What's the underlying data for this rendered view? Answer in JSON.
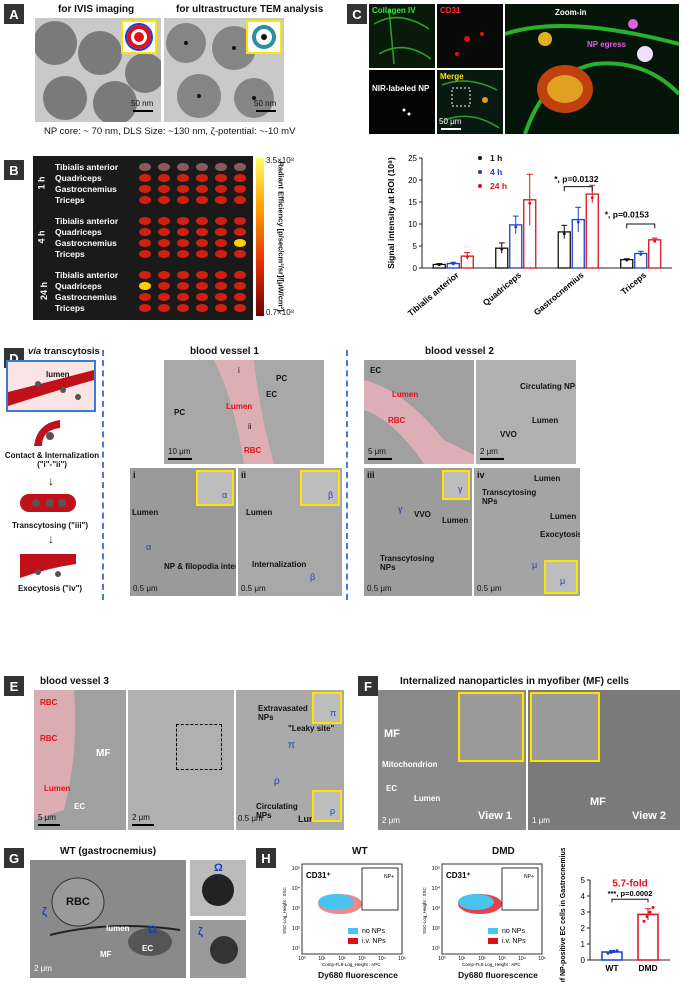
{
  "panels": {
    "A": {
      "label": "A",
      "title_left": "for IVIS imaging",
      "title_right": "for ultrastructure TEM analysis",
      "scale_left": "50 nm",
      "scale_right": "50 nm",
      "caption": "NP core: ~ 70 nm, DLS Size: ~130 nm, ζ-potential: ~-10 mV"
    },
    "B": {
      "label": "B",
      "groups": [
        {
          "time": "1 h",
          "rows": [
            "Tibialis anterior",
            "Quadriceps",
            "Gastrocnemius",
            "Triceps"
          ]
        },
        {
          "time": "4 h",
          "rows": [
            "Tibialis anterior",
            "Quadriceps",
            "Gastrocnemius",
            "Triceps"
          ]
        },
        {
          "time": "24 h",
          "rows": [
            "Tibialis anterior",
            "Quadriceps",
            "Gastrocnemius",
            "Triceps"
          ]
        }
      ],
      "colorbar_max": "3.5×10⁸",
      "colorbar_min": "0.7×10⁸",
      "colorbar_label": "Radiant Efficiency [p/sec/cm²/sr]/[μW/cm²]"
    },
    "C": {
      "label": "C",
      "img_labels": {
        "collagen": "Collagen IV",
        "cd31": "CD31",
        "zoom": "Zoom-in",
        "nir": "NIR-labeled NP",
        "merge": "Merge",
        "egress": "NP egress",
        "scale": "50 μm"
      }
    },
    "D": {
      "label": "D",
      "schematic_title_a": "via",
      "schematic_title_b": " transcytosis",
      "lumen": "lumen",
      "step1": "Contact & Internalization (\"i\"-\"ii\")",
      "step2": "Transcytosing (\"iii\")",
      "step3": "Exocytosis (\"iv\")",
      "bv1_title": "blood vessel 1",
      "bv2_title": "blood vessel 2",
      "bv1_labels": {
        "pc1": "PC",
        "pc2": "PC",
        "ec": "EC",
        "lumen": "Lumen",
        "rbc": "RBC",
        "i": "i",
        "ii": "ii",
        "scale": "10 μm"
      },
      "bv2_labels": {
        "ec": "EC",
        "lumen": "Lumen",
        "rbc": "RBC",
        "scale": "5 μm",
        "circ": "Circulating NPs",
        "lumen2": "Lumen",
        "vvo": "VVO",
        "scale2": "2 μm"
      },
      "sub": {
        "i": {
          "num": "i",
          "lumen": "Lumen",
          "text": "NP & filopodia interaction",
          "greek": "α",
          "scale": "0.5 μm"
        },
        "ii": {
          "num": "ii",
          "lumen": "Lumen",
          "text": "Internalization",
          "greek": "β",
          "scale": "0.5 μm"
        },
        "iii": {
          "num": "iii",
          "vvo": "VVO",
          "lumen": "Lumen",
          "text": "Transcytosing NPs",
          "greek": "γ",
          "scale": "0.5 μm"
        },
        "iv": {
          "num": "iv",
          "lumen": "Lumen",
          "lumen2": "Lumen",
          "text": "Transcytosing NPs",
          "exo": "Exocytosis",
          "greek": "μ",
          "scale": "0.5 μm"
        }
      }
    },
    "E": {
      "label": "E",
      "title": "blood vessel 3",
      "labels": {
        "rbc1": "RBC",
        "rbc2": "RBC",
        "lumen": "Lumen",
        "mf": "MF",
        "ec": "EC",
        "scale1": "5 μm",
        "scale2": "2 μm",
        "extra": "Extravasated NPs",
        "leaky": "\"Leaky site\"",
        "circ": "Circulating NPs",
        "lumen2": "Lumen",
        "pi": "π",
        "rho": "ρ",
        "scale3": "0.5 μm"
      }
    },
    "F": {
      "label": "F",
      "title": "Internalized nanoparticles in myofiber (MF) cells",
      "labels": {
        "mf": "MF",
        "mito": "Mitochondrion",
        "ec": "EC",
        "lumen": "Lumen",
        "view1": "View 1",
        "view2": "View 2",
        "mf2": "MF",
        "scale1": "2 μm",
        "scale2": "1 μm"
      }
    },
    "G": {
      "label": "G",
      "title": "WT (gastrocnemius)",
      "labels": {
        "rbc": "RBC",
        "lumen": "lumen",
        "mf": "MF",
        "ec": "EC",
        "zeta": "ζ",
        "omega": "Ω",
        "scale": "2 μm"
      }
    },
    "H": {
      "label": "H",
      "wt_title": "WT",
      "dmd_title": "DMD",
      "cd31": "CD31⁺",
      "gate": "NP+",
      "xlabel": "Dy680 fluorescence",
      "xlabel_small": "Comp-FL8-Log_Height : APC",
      "ylabel_small": "SSC-Log_Height : SSC",
      "legend_no": "no NPs",
      "legend_iv": "i.v. NPs",
      "ticks": [
        "10⁵",
        "10⁴",
        "10³",
        "10²",
        "10¹"
      ],
      "xticks": [
        "10⁰",
        "10¹",
        "10²",
        "10³",
        "10⁴",
        "10⁵"
      ]
    }
  },
  "chart_data": [
    {
      "type": "bar",
      "panel": "C",
      "categories": [
        "Tibialis anterior",
        "Quadriceps",
        "Gastrocnemius",
        "Triceps"
      ],
      "series": [
        {
          "name": "1 h",
          "color": "#111111",
          "values": [
            0.8,
            4.5,
            8.2,
            1.9
          ],
          "errors": [
            0.2,
            1.2,
            1.5,
            0.2
          ]
        },
        {
          "name": "4 h",
          "color": "#1a3fd0",
          "values": [
            1.0,
            9.8,
            11.0,
            3.3
          ],
          "errors": [
            0.3,
            2.0,
            2.8,
            0.5
          ]
        },
        {
          "name": "24 h",
          "color": "#e0101a",
          "values": [
            2.7,
            15.5,
            16.8,
            6.4
          ],
          "errors": [
            0.8,
            5.8,
            2.0,
            0.4
          ]
        }
      ],
      "ylabel": "Signal intensity at ROI (10⁸)",
      "ylim": [
        0,
        25
      ],
      "yticks": [
        0,
        5,
        10,
        15,
        20,
        25
      ],
      "annotations": [
        "*, p=0.0132",
        "*, p=0.0153"
      ],
      "legend": "top-left"
    },
    {
      "type": "bar",
      "panel": "H",
      "categories": [
        "WT",
        "DMD"
      ],
      "values": [
        0.5,
        2.85
      ],
      "errors": [
        0.1,
        0.35
      ],
      "colors": [
        "#1a3fd0",
        "#e0101a"
      ],
      "ylabel": "% of NP-positive EC cells in Gastrocnemius",
      "ylim": [
        0,
        5
      ],
      "yticks": [
        0,
        1,
        2,
        3,
        4,
        5
      ],
      "fold": "5.7-fold",
      "pvalue": "***, p=0.0002"
    }
  ]
}
